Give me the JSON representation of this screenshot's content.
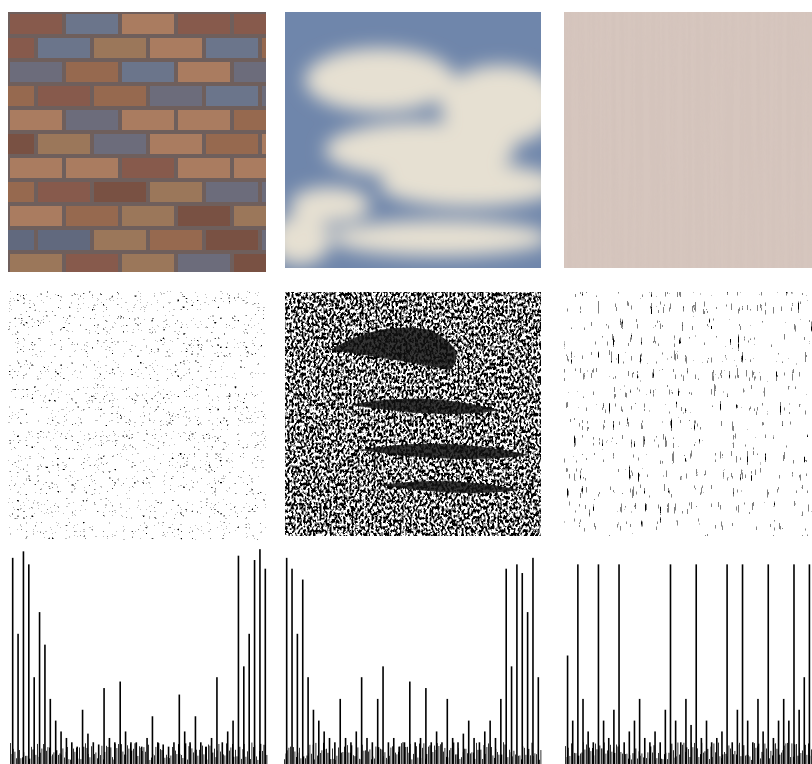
{
  "chart_data": [
    {
      "type": "bar",
      "values": [
        95,
        60,
        98,
        92,
        40,
        70,
        55,
        30,
        20,
        15,
        12,
        10,
        8,
        25,
        14,
        10,
        9,
        35,
        12,
        10,
        38,
        15,
        10,
        10,
        8,
        12,
        22,
        10,
        9,
        8,
        10,
        32,
        15,
        10,
        22,
        10,
        8,
        12,
        40,
        10,
        15,
        20,
        96,
        45,
        60,
        94,
        99,
        90
      ]
    },
    {
      "type": "bar",
      "values": [
        95,
        90,
        60,
        85,
        40,
        25,
        20,
        15,
        12,
        10,
        30,
        12,
        10,
        15,
        40,
        12,
        10,
        30,
        45,
        10,
        12,
        8,
        10,
        38,
        10,
        12,
        35,
        10,
        15,
        10,
        30,
        12,
        10,
        14,
        20,
        12,
        10,
        15,
        20,
        12,
        30,
        90,
        45,
        92,
        88,
        70,
        95,
        40
      ]
    },
    {
      "type": "bar",
      "values": [
        50,
        20,
        92,
        30,
        15,
        10,
        92,
        20,
        12,
        25,
        92,
        10,
        15,
        20,
        30,
        12,
        10,
        15,
        10,
        25,
        92,
        20,
        10,
        30,
        18,
        92,
        12,
        20,
        10,
        12,
        15,
        92,
        10,
        25,
        92,
        20,
        10,
        30,
        15,
        92,
        12,
        20,
        30,
        20,
        92,
        25,
        40,
        92
      ]
    }
  ]
}
